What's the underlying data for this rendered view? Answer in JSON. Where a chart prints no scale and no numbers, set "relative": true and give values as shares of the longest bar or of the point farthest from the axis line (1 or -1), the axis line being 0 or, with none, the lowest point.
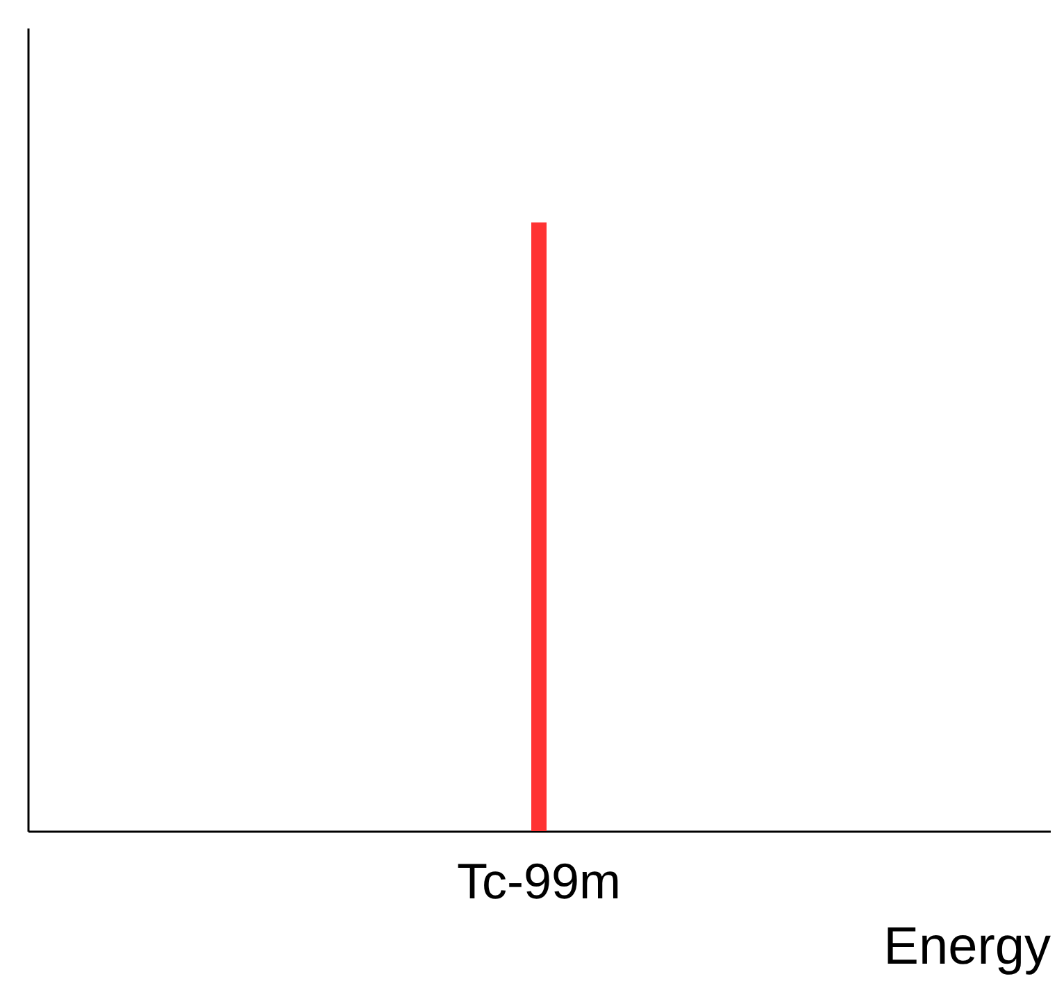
{
  "chart_data": {
    "type": "bar",
    "categories": [
      "Tc-99m"
    ],
    "values": [
      1
    ],
    "color": "#ff3333",
    "xlabel": "Energy",
    "relative": true,
    "grid": false
  }
}
